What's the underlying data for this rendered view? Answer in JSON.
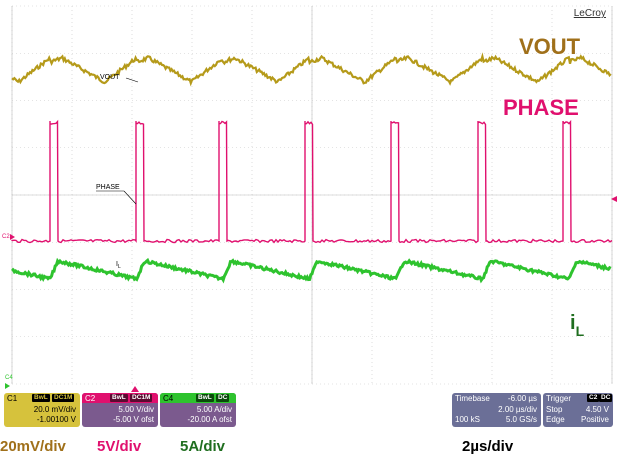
{
  "brand": "LeCroy",
  "trace_labels": {
    "vout": "VOUT",
    "phase": "PHASE",
    "il_main": "I",
    "il_sub": "L"
  },
  "big_labels": {
    "vout": "VOUT",
    "phase": "PHASE",
    "il_main": "i",
    "il_sub": "L"
  },
  "channel_markers": {
    "c2": "C2",
    "c4": "C4"
  },
  "colors": {
    "vout": "#b59a1a",
    "phase": "#e0106e",
    "il": "#2ec32e",
    "vout_label": "#a0701a",
    "phase_label": "#e0106e",
    "il_label": "#1f6e1f"
  },
  "channels": [
    {
      "id": "C1",
      "bw": "BwL",
      "coupling": "DC1M",
      "vdiv": "20.0 mV/div",
      "offset": "-1.00100 V"
    },
    {
      "id": "C2",
      "bw": "BwL",
      "coupling": "DC1M",
      "vdiv": "5.00 V/div",
      "offset": "-5.00 V ofst"
    },
    {
      "id": "C4",
      "bw": "BwL",
      "coupling": "DC",
      "vdiv": "5.00 A/div",
      "offset": "-20.00 A ofst"
    }
  ],
  "timebase": {
    "label": "Timebase",
    "delay": "-6.00 µs",
    "tdiv": "2.00 µs/div",
    "samples": "100 kS",
    "rate": "5.0 GS/s"
  },
  "trigger": {
    "label": "Trigger",
    "source": "C2",
    "coupling": "DC",
    "mode": "Stop",
    "level": "4.50 V",
    "type": "Edge",
    "slope": "Positive"
  },
  "scale_labels": {
    "c1": "20mV/div",
    "c2": "5V/div",
    "c4": "5A/div",
    "time": "2µs/div"
  }
}
